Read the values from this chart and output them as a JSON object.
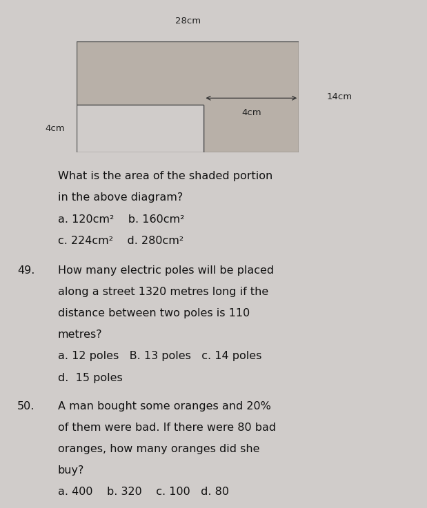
{
  "bg_color": "#d0ccca",
  "diagram": {
    "shaded_color": "#b8b0a8",
    "unshaded_color": "#cdc9c7",
    "outline_color": "#555555",
    "label_28cm": "28cm",
    "label_14cm": "14cm",
    "label_4cm_h": "4cm",
    "label_4cm_w": "4cm"
  },
  "q48_text_line1": "What is the area of the shaded portion",
  "q48_text_line2": "in the above diagram?",
  "q48_ans1": "a. 120cm²    b. 160cm²",
  "q48_ans2": "c. 224cm²    d. 280cm²",
  "q49_num": "49.",
  "q49_lines": [
    "How many electric poles will be placed",
    "along a street 1320 metres long if the",
    "distance between two poles is 110",
    "metres?",
    "a. 12 poles   B. 13 poles   c. 14 poles",
    "d.  15 poles"
  ],
  "q50_num": "50.",
  "q50_lines": [
    "A man bought some oranges and 20%",
    "of them were bad. If there were 80 bad",
    "oranges, how many oranges did she",
    "buy?",
    "a. 400    b. 320    c. 100   d. 80"
  ],
  "font_size_text": 11.5,
  "font_size_label": 9.5
}
